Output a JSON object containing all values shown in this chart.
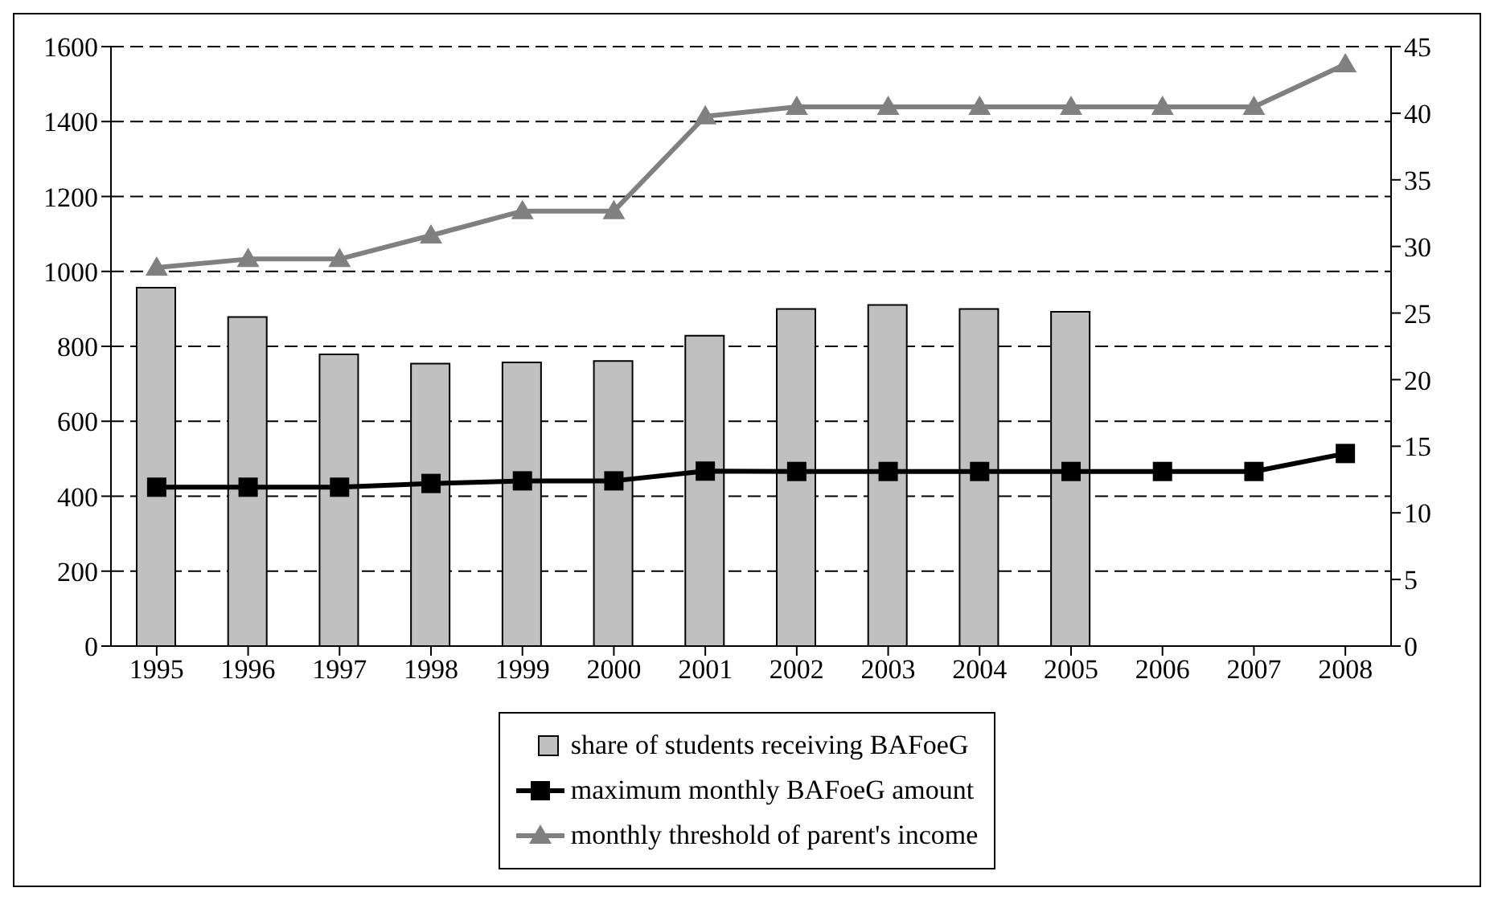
{
  "chart_data": {
    "type": "bar",
    "categories": [
      "1995",
      "1996",
      "1997",
      "1998",
      "1999",
      "2000",
      "2001",
      "2002",
      "2003",
      "2004",
      "2005",
      "2006",
      "2007",
      "2008"
    ],
    "series": [
      {
        "name": "share of students receiving BAFoeG",
        "axis": "y2",
        "color": "#c0c0c0",
        "values": [
          26.9,
          24.7,
          21.9,
          21.2,
          21.3,
          21.4,
          23.3,
          25.3,
          25.6,
          25.3,
          25.1,
          null,
          null,
          null
        ]
      },
      {
        "name": "maximum monthly BAFoeG amount",
        "type": "line",
        "marker": "square",
        "color": "#000000",
        "values": [
          424,
          424,
          424,
          434,
          441,
          441,
          467,
          466,
          466,
          466,
          466,
          466,
          466,
          514
        ]
      },
      {
        "name": "monthly threshold of parent's income",
        "type": "line",
        "marker": "triangle",
        "color": "#808080",
        "values": [
          1010,
          1033,
          1033,
          1096,
          1161,
          1161,
          1414,
          1439,
          1439,
          1439,
          1439,
          1439,
          1439,
          1553
        ]
      }
    ],
    "ylim": [
      0,
      1600
    ],
    "yticks": [
      0,
      200,
      400,
      600,
      800,
      1000,
      1200,
      1400,
      1600
    ],
    "y2lim": [
      0,
      45
    ],
    "y2ticks": [
      0,
      5,
      10,
      15,
      20,
      25,
      30,
      35,
      40,
      45
    ],
    "grid": "y",
    "legend": "bottom",
    "line_style": "solid"
  }
}
